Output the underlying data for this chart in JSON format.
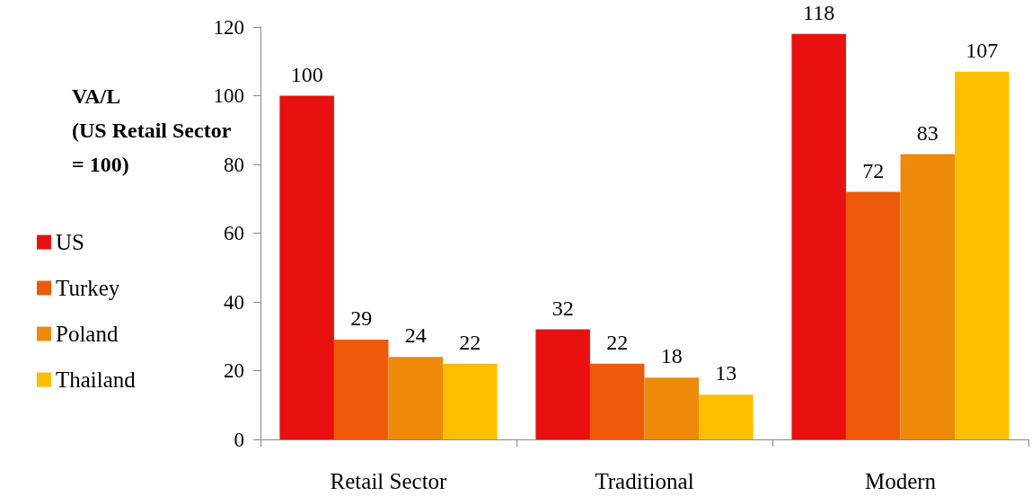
{
  "chart_data": {
    "type": "bar",
    "ylabel": "VA/L\n(US Retail Sector\n= 100)",
    "categories": [
      "Retail Sector",
      "Traditional",
      "Modern"
    ],
    "series": [
      {
        "name": "US",
        "color": "#e8110f",
        "values": [
          100,
          32,
          118
        ]
      },
      {
        "name": "Turkey",
        "color": "#ee5a0a",
        "values": [
          29,
          22,
          72
        ]
      },
      {
        "name": "Poland",
        "color": "#ee8a0a",
        "values": [
          24,
          18,
          83
        ]
      },
      {
        "name": "Thailand",
        "color": "#fdbf00",
        "values": [
          22,
          13,
          107
        ]
      }
    ],
    "ylim": [
      0,
      120
    ],
    "yticks": [
      0,
      20,
      40,
      60,
      80,
      100,
      120
    ],
    "data_labels": true,
    "grid": false,
    "legend": "left"
  }
}
